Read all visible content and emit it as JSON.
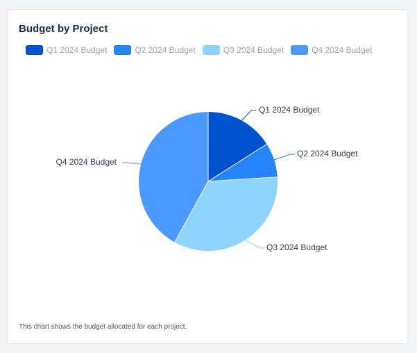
{
  "card": {
    "title": "Budget by Project",
    "note": "This chart shows the budget allocated for each project."
  },
  "colors": {
    "q1": "#0052cc",
    "q2": "#2684ff",
    "q3": "#8fd3ff",
    "q4": "#4c9aff"
  },
  "chart_data": {
    "type": "pie",
    "title": "Budget by Project",
    "legend_position": "top",
    "categories": [
      "Q1 2024 Budget",
      "Q2 2024 Budget",
      "Q3 2024 Budget",
      "Q4 2024 Budget"
    ],
    "values": [
      16,
      8,
      34,
      42
    ],
    "colors": [
      "#0052cc",
      "#2684ff",
      "#8fd3ff",
      "#4c9aff"
    ],
    "labels": [
      "Q1 2024 Budget",
      "Q2 2024 Budget",
      "Q3 2024 Budget",
      "Q4 2024 Budget"
    ]
  }
}
